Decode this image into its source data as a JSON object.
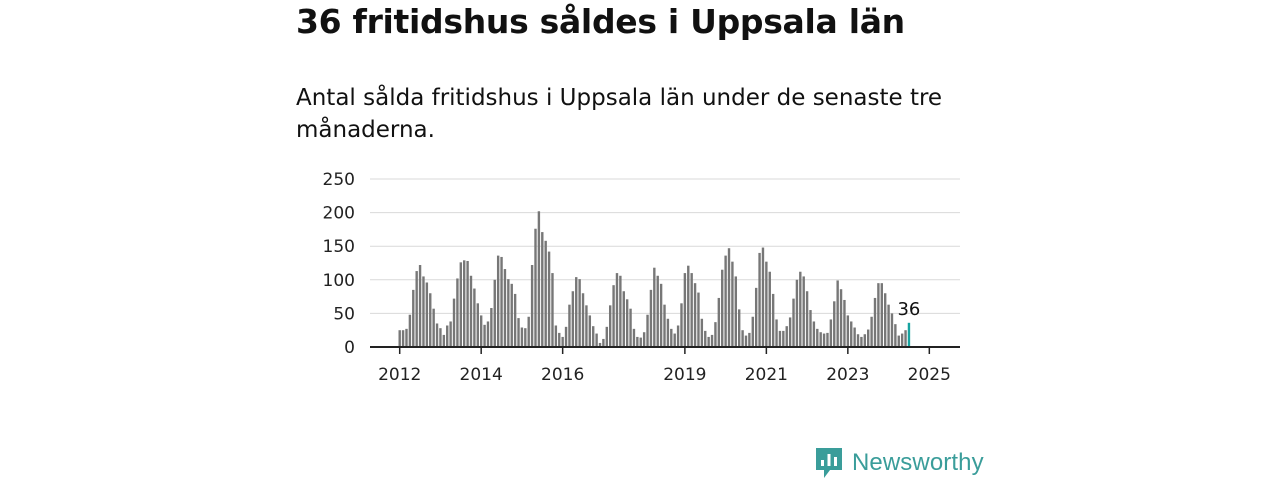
{
  "chart_data": {
    "type": "bar",
    "title": "36 fritidshus såldes i Uppsala län",
    "subtitle": "Antal sålda fritidshus i Uppsala län under de senaste tre månaderna.",
    "xlabel": "",
    "ylabel": "",
    "ylim": [
      0,
      250
    ],
    "yticks": [
      "0",
      "50",
      "100",
      "150",
      "200",
      "250"
    ],
    "grid": true,
    "start": "2012-01",
    "xticks": [
      {
        "label": "2012",
        "month": "2012-01"
      },
      {
        "label": "2014",
        "month": "2014-01"
      },
      {
        "label": "2016",
        "month": "2016-01"
      },
      {
        "label": "2019",
        "month": "2019-01"
      },
      {
        "label": "2021",
        "month": "2021-01"
      },
      {
        "label": "2023",
        "month": "2023-01"
      },
      {
        "label": "2025",
        "month": "2025-01"
      }
    ],
    "values": [
      25,
      25,
      27,
      48,
      85,
      113,
      122,
      105,
      96,
      80,
      57,
      35,
      28,
      18,
      32,
      38,
      72,
      102,
      126,
      129,
      128,
      106,
      87,
      65,
      47,
      33,
      38,
      58,
      100,
      136,
      134,
      116,
      101,
      94,
      79,
      43,
      29,
      28,
      45,
      122,
      176,
      202,
      171,
      158,
      142,
      110,
      32,
      21,
      15,
      30,
      63,
      83,
      104,
      101,
      80,
      62,
      47,
      31,
      20,
      6,
      12,
      30,
      62,
      92,
      110,
      106,
      83,
      71,
      57,
      27,
      15,
      14,
      22,
      48,
      85,
      118,
      106,
      94,
      63,
      42,
      27,
      20,
      32,
      65,
      110,
      121,
      110,
      95,
      81,
      42,
      24,
      15,
      18,
      37,
      73,
      115,
      136,
      147,
      127,
      105,
      56,
      25,
      17,
      21,
      45,
      88,
      140,
      148,
      127,
      112,
      79,
      41,
      24,
      24,
      31,
      44,
      72,
      100,
      112,
      105,
      83,
      55,
      38,
      27,
      22,
      20,
      21,
      41,
      68,
      99,
      86,
      70,
      47,
      38,
      29,
      19,
      15,
      19,
      26,
      45,
      73,
      95,
      95,
      80,
      63,
      50,
      34,
      17,
      20,
      25,
      36
    ],
    "highlight": {
      "value": 36,
      "label": "36",
      "color": "#17a3a0"
    },
    "bar_color": "#777777"
  },
  "brand": {
    "name": "Newsworthy",
    "color": "#3a9d9a",
    "icon": "bar-chart-badge-icon"
  }
}
